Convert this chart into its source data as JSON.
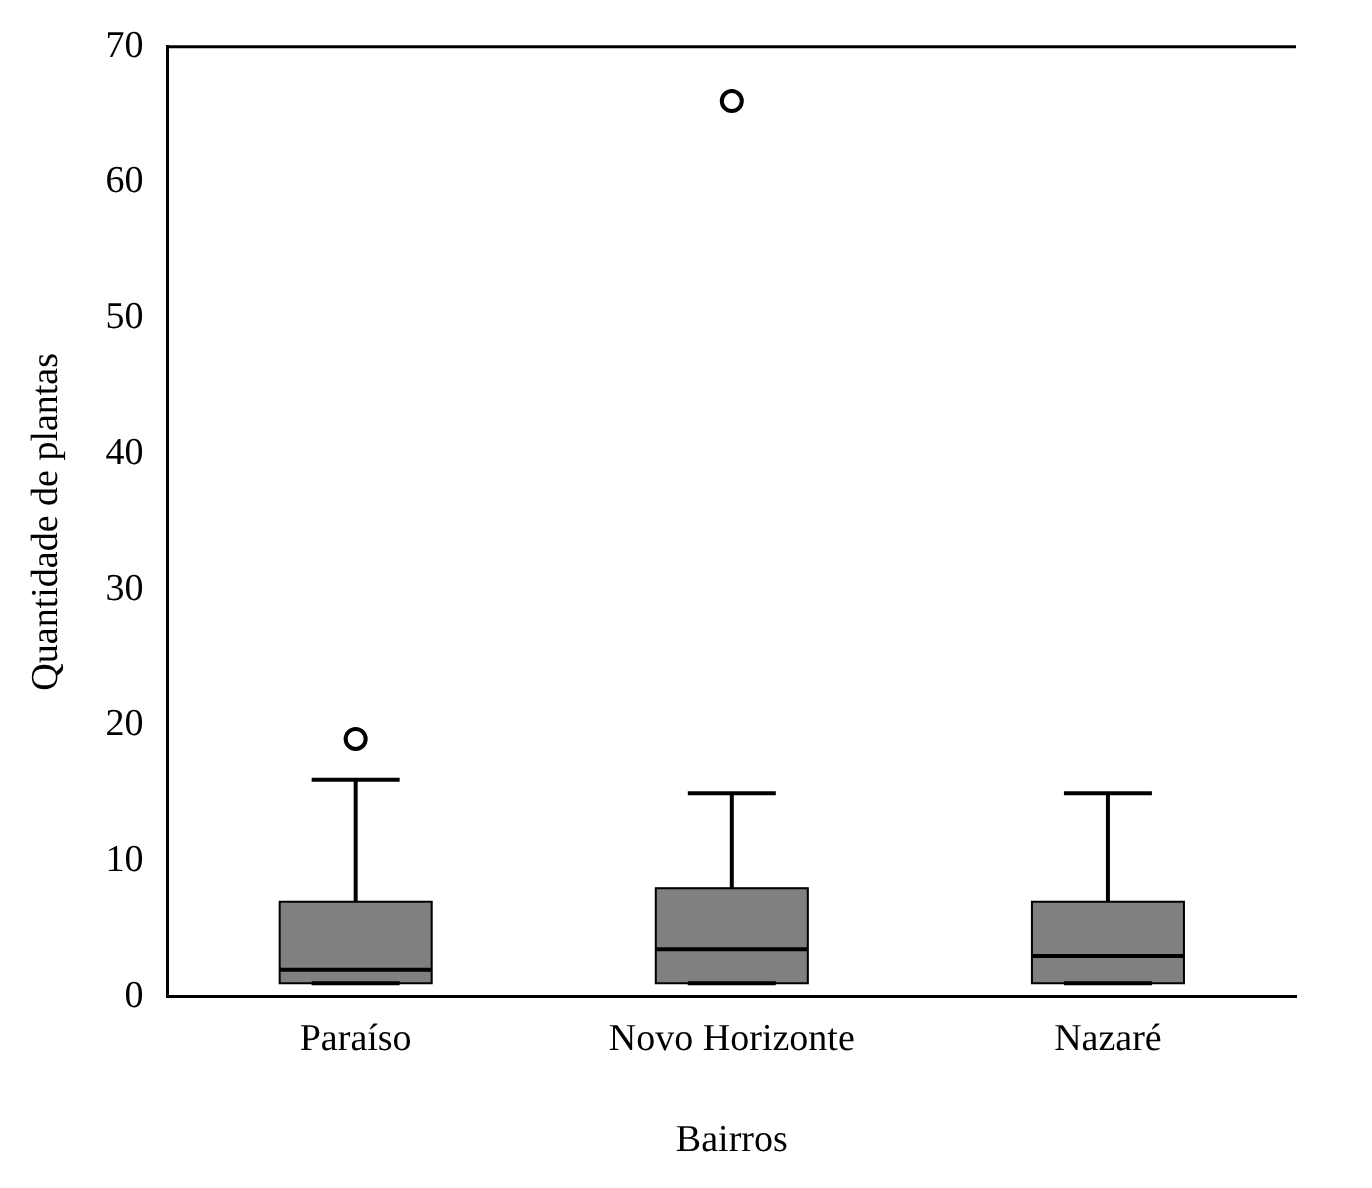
{
  "chart_data": {
    "type": "box",
    "xlabel": "Bairros",
    "ylabel": "Quantidade de plantas",
    "categories": [
      "Paraíso",
      "Novo Horizonte",
      "Nazaré"
    ],
    "boxes": [
      {
        "low": 1,
        "q1": 1,
        "median": 2,
        "q3": 7,
        "high": 16,
        "outliers": [
          19
        ]
      },
      {
        "low": 1,
        "q1": 1,
        "median": 3.5,
        "q3": 8,
        "high": 15,
        "outliers": [
          66
        ]
      },
      {
        "low": 1,
        "q1": 1,
        "median": 3,
        "q3": 7,
        "high": 15
      }
    ],
    "color": "#808080",
    "ylim": [
      0,
      70
    ],
    "yticks": [
      0,
      10,
      20,
      30,
      40,
      50,
      60,
      70
    ],
    "grid": false,
    "legend": false
  }
}
